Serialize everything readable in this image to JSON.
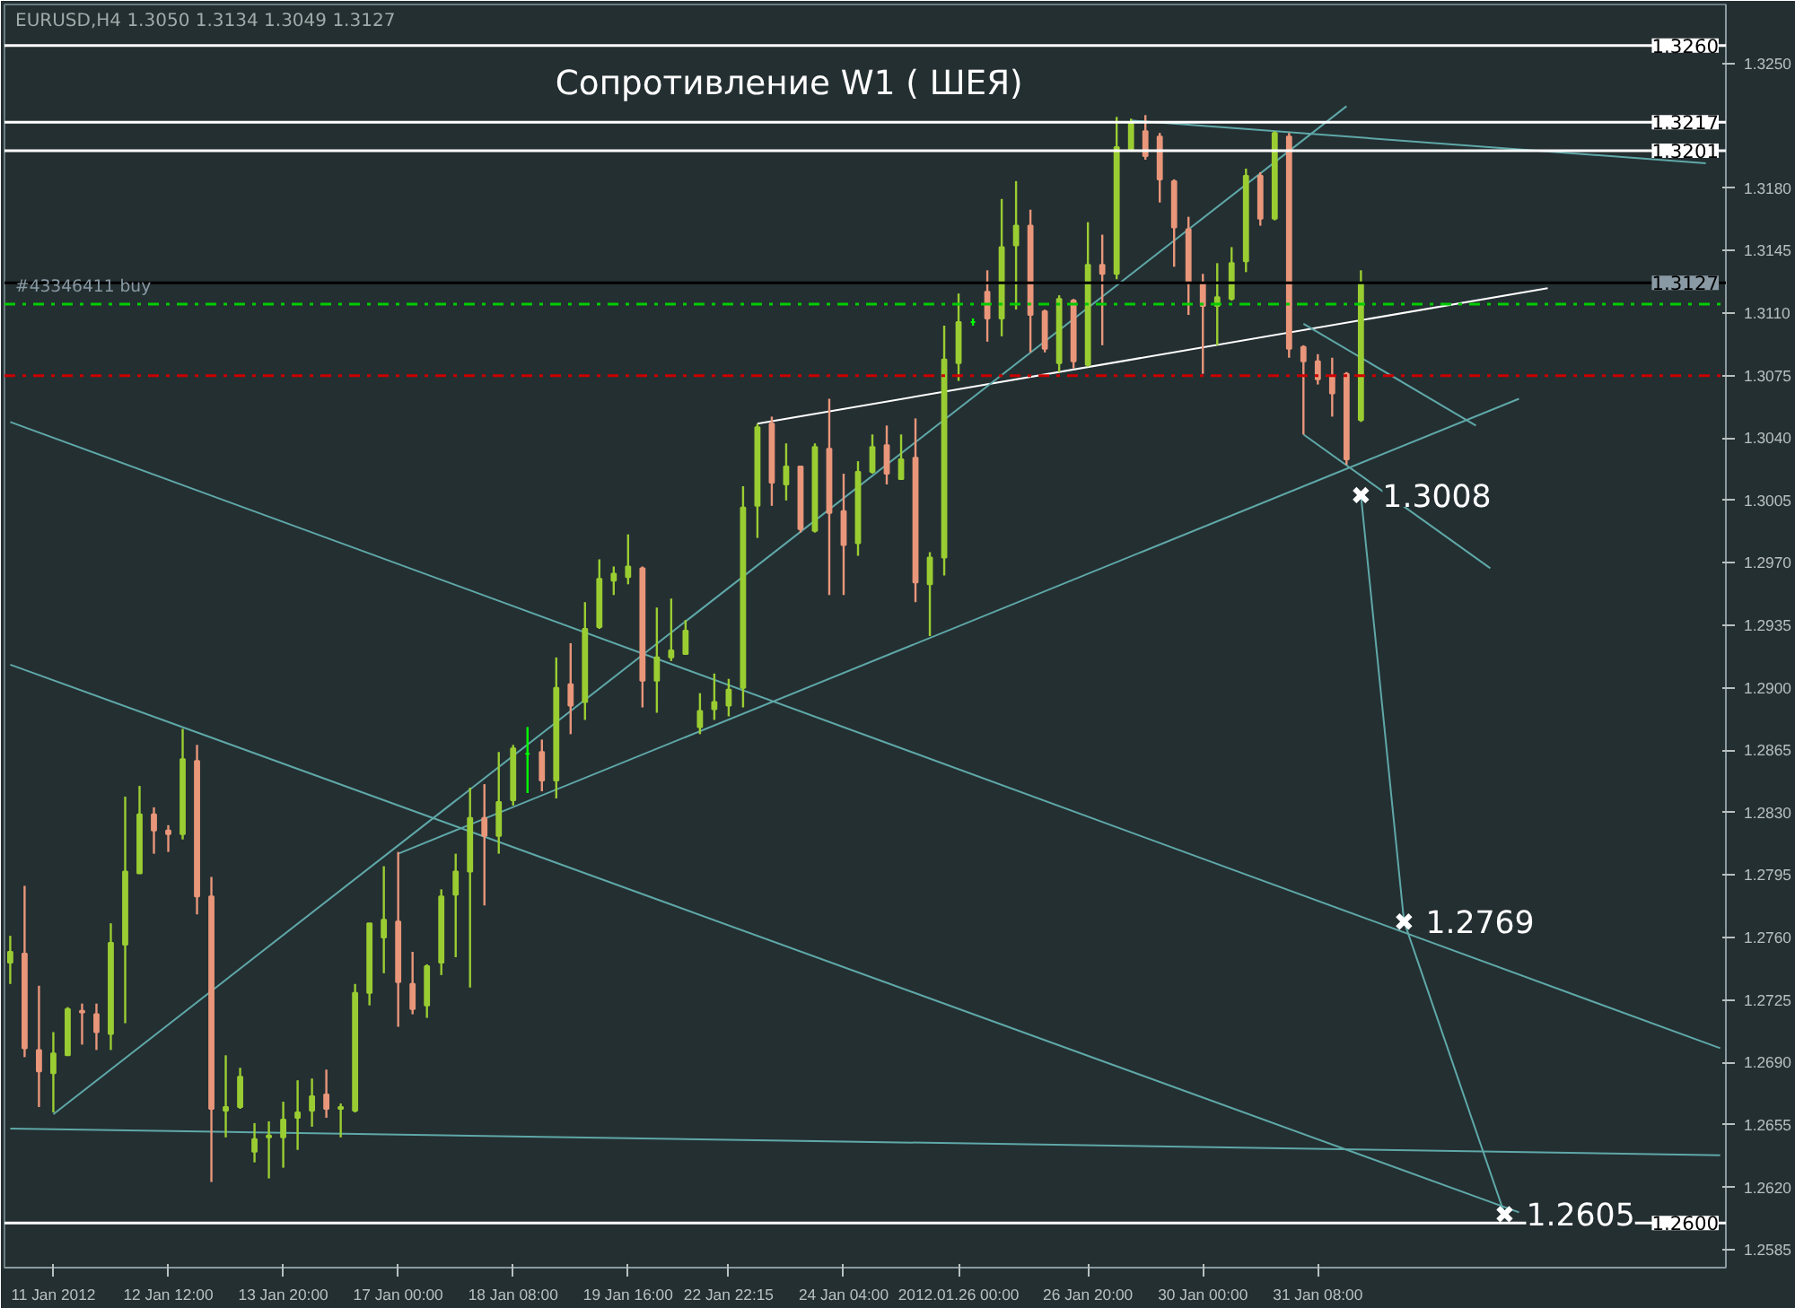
{
  "chart_data": {
    "type": "candlestick",
    "title": "EURUSD,H4  1.3050 1.3134 1.3049 1.3127",
    "categories": [
      null,
      null,
      null,
      "11 Jan 2012",
      null,
      null,
      null,
      null,
      null,
      null,
      null,
      "12 Jan 12:00",
      null,
      null,
      null,
      null,
      null,
      null,
      null,
      "13 Jan 20:00",
      null,
      null,
      null,
      null,
      null,
      null,
      null,
      "17 Jan 00:00",
      null,
      null,
      null,
      null,
      null,
      null,
      null,
      "18 Jan 08:00",
      null,
      null,
      null,
      null,
      null,
      null,
      null,
      "19 Jan 16:00",
      null,
      null,
      null,
      null,
      null,
      null,
      "22 Jan 22:15",
      null,
      null,
      null,
      null,
      null,
      null,
      null,
      "24 Jan 04:00",
      null,
      null,
      null,
      null,
      null,
      null,
      null,
      "2012.01.26 00:00",
      null,
      null,
      null,
      null,
      null,
      null,
      null,
      null,
      "26 Jan 20:00",
      null,
      null,
      null,
      null,
      null,
      null,
      null,
      "30 Jan 00:00",
      null,
      null,
      null,
      null,
      null,
      null,
      null,
      "31 Jan 08:00",
      null,
      null,
      null,
      null,
      null,
      null,
      null,
      null,
      null,
      null,
      null,
      null,
      null,
      null,
      null,
      null,
      null,
      null,
      null,
      null,
      null,
      null,
      null,
      null,
      null,
      null,
      null,
      null
    ],
    "ohlc": [
      [
        1.2746,
        1.2761,
        1.2734,
        1.2752
      ],
      [
        1.2751,
        1.2789,
        1.2693,
        1.2698
      ],
      [
        1.2697,
        1.2733,
        1.2665,
        1.2685
      ],
      [
        1.2684,
        1.2707,
        1.2662,
        1.2695
      ],
      [
        1.2694,
        1.2721,
        1.2694,
        1.272
      ],
      [
        1.2719,
        1.2723,
        1.27,
        1.2718
      ],
      [
        1.2717,
        1.2723,
        1.2697,
        1.2707
      ],
      [
        1.2706,
        1.2768,
        1.2697,
        1.2757
      ],
      [
        1.2756,
        1.2839,
        1.2712,
        1.2797
      ],
      [
        1.2796,
        1.2845,
        1.2796,
        1.2829
      ],
      [
        1.2829,
        1.2833,
        1.2807,
        1.282
      ],
      [
        1.282,
        1.2823,
        1.2808,
        1.2818
      ],
      [
        1.2818,
        1.2877,
        1.2815,
        1.286
      ],
      [
        1.2859,
        1.2868,
        1.2773,
        1.2783
      ],
      [
        1.2783,
        1.2794,
        1.2623,
        1.2664
      ],
      [
        1.2663,
        1.2694,
        1.2648,
        1.2665
      ],
      [
        1.2665,
        1.2687,
        1.2664,
        1.2682
      ],
      [
        1.264,
        1.2656,
        1.2634,
        1.2647
      ],
      [
        1.2648,
        1.2657,
        1.2625,
        1.2649
      ],
      [
        1.2648,
        1.2668,
        1.2631,
        1.2658
      ],
      [
        1.2659,
        1.268,
        1.2641,
        1.2662
      ],
      [
        1.2663,
        1.2681,
        1.2654,
        1.2671
      ],
      [
        1.2672,
        1.2686,
        1.2659,
        1.2664
      ],
      [
        1.2664,
        1.2667,
        1.2648,
        1.2665
      ],
      [
        1.2663,
        1.2734,
        1.2662,
        1.2729
      ],
      [
        1.2729,
        1.2768,
        1.2722,
        1.2768
      ],
      [
        1.276,
        1.28,
        1.274,
        1.277
      ],
      [
        1.2769,
        1.2808,
        1.271,
        1.2735
      ],
      [
        1.2734,
        1.2752,
        1.2717,
        1.272
      ],
      [
        1.2722,
        1.2745,
        1.2715,
        1.2744
      ],
      [
        1.2746,
        1.2787,
        1.2739,
        1.2783
      ],
      [
        1.2784,
        1.2807,
        1.2749,
        1.2797
      ],
      [
        1.2797,
        1.2844,
        1.2732,
        1.2827
      ],
      [
        1.2827,
        1.2846,
        1.2778,
        1.2817
      ],
      [
        1.2817,
        1.2864,
        1.2807,
        1.2836
      ],
      [
        1.2837,
        1.2868,
        1.2834,
        1.2866
      ],
      [
        1.2863,
        1.2878,
        1.2841,
        1.2863
      ],
      [
        1.2864,
        1.2871,
        1.2842,
        1.2848
      ],
      [
        1.2848,
        1.2917,
        1.2838,
        1.29
      ],
      [
        1.2902,
        1.2925,
        1.2874,
        1.289
      ],
      [
        1.2892,
        1.2948,
        1.2882,
        1.2933
      ],
      [
        1.2934,
        1.2972,
        1.2933,
        1.2961
      ],
      [
        1.296,
        1.2968,
        1.2952,
        1.2964
      ],
      [
        1.2962,
        1.2986,
        1.2958,
        1.2968
      ],
      [
        1.2967,
        1.2968,
        1.2889,
        1.2904
      ],
      [
        1.2904,
        1.2945,
        1.2886,
        1.2917
      ],
      [
        1.2917,
        1.295,
        1.2915,
        1.2921
      ],
      [
        1.2919,
        1.2938,
        1.2919,
        1.2932
      ],
      [
        1.2878,
        1.2897,
        1.2874,
        1.2887
      ],
      [
        1.2888,
        1.2908,
        1.2882,
        1.2892
      ],
      [
        1.289,
        1.2905,
        1.2884,
        1.2899
      ],
      [
        1.29,
        1.3013,
        1.2889,
        1.3001
      ],
      [
        1.3002,
        1.3048,
        1.2984,
        1.3046
      ],
      [
        1.3048,
        1.3052,
        1.3002,
        1.3015
      ],
      [
        1.3014,
        1.3037,
        1.3005,
        1.3024
      ],
      [
        1.3024,
        1.3024,
        1.2987,
        1.2989
      ],
      [
        1.2988,
        1.3037,
        1.2987,
        1.3035
      ],
      [
        1.3034,
        1.3062,
        1.2952,
        1.2998
      ],
      [
        1.2999,
        1.302,
        1.2952,
        1.298
      ],
      [
        1.2981,
        1.3027,
        1.2974,
        1.3021
      ],
      [
        1.3021,
        1.3042,
        1.302,
        1.3035
      ],
      [
        1.3036,
        1.3047,
        1.3014,
        1.302
      ],
      [
        1.3017,
        1.3042,
        1.3017,
        1.3028
      ],
      [
        1.3029,
        1.3051,
        1.2948,
        1.2959
      ],
      [
        1.2958,
        1.2976,
        1.2929,
        1.2973
      ],
      [
        1.2973,
        1.3103,
        1.2963,
        1.3084
      ],
      [
        1.3082,
        1.3121,
        1.3072,
        1.3105
      ],
      [
        1.3105,
        1.3107,
        1.3103,
        1.3105
      ],
      [
        1.3122,
        1.3134,
        1.3094,
        1.3107
      ],
      [
        1.3107,
        1.3174,
        1.3097,
        1.3147
      ],
      [
        1.3148,
        1.3184,
        1.3112,
        1.3159
      ],
      [
        1.3159,
        1.3168,
        1.3088,
        1.3109
      ],
      [
        1.3111,
        1.3112,
        1.3088,
        1.309
      ],
      [
        1.3082,
        1.312,
        1.3077,
        1.3118
      ],
      [
        1.3117,
        1.3118,
        1.3079,
        1.3083
      ],
      [
        1.3081,
        1.3161,
        1.308,
        1.3137
      ],
      [
        1.3137,
        1.3154,
        1.3092,
        1.3132
      ],
      [
        1.3132,
        1.322,
        1.3129,
        1.3203
      ],
      [
        1.3201,
        1.3219,
        1.3201,
        1.3217
      ],
      [
        1.3212,
        1.3221,
        1.3196,
        1.3198
      ],
      [
        1.3209,
        1.3211,
        1.3172,
        1.3185
      ],
      [
        1.3184,
        1.3185,
        1.3136,
        1.3158
      ],
      [
        1.3157,
        1.3164,
        1.3109,
        1.3127
      ],
      [
        1.3127,
        1.3132,
        1.3076,
        1.3114
      ],
      [
        1.3114,
        1.3138,
        1.3092,
        1.3119
      ],
      [
        1.3118,
        1.3147,
        1.3117,
        1.3138
      ],
      [
        1.3139,
        1.3191,
        1.3133,
        1.3187
      ],
      [
        1.3187,
        1.3189,
        1.3159,
        1.3163
      ],
      [
        1.3163,
        1.3212,
        1.3162,
        1.3211
      ],
      [
        1.3209,
        1.3211,
        1.3085,
        1.309
      ],
      [
        1.3091,
        1.3092,
        1.3042,
        1.3083
      ],
      [
        1.3083,
        1.3087,
        1.307,
        1.3073
      ],
      [
        1.3075,
        1.3085,
        1.3052,
        1.3065
      ],
      [
        1.3076,
        1.3077,
        1.3025,
        1.3028
      ],
      [
        1.305,
        1.3134,
        1.3049,
        1.3127
      ],
      null,
      null,
      null,
      null,
      null,
      null,
      null,
      null,
      null,
      null,
      null,
      null,
      null,
      null,
      null,
      null,
      null,
      null,
      null,
      null,
      null,
      null,
      null,
      null,
      null
    ],
    "colors": [
      "#9acd32",
      "#e9967a",
      "#e9967a",
      "#9acd32",
      "#9acd32",
      "#e9967a",
      "#e9967a",
      "#9acd32",
      "#9acd32",
      "#9acd32",
      "#e9967a",
      "#e9967a",
      "#9acd32",
      "#e9967a",
      "#e9967a",
      "#9acd32",
      "#9acd32",
      "#9acd32",
      "#9acd32",
      "#9acd32",
      "#9acd32",
      "#9acd32",
      "#e9967a",
      "#9acd32",
      "#9acd32",
      "#9acd32",
      "#9acd32",
      "#e9967a",
      "#e9967a",
      "#9acd32",
      "#9acd32",
      "#9acd32",
      "#9acd32",
      "#e9967a",
      "#9acd32",
      "#9acd32",
      "#00ff00",
      "#e9967a",
      "#9acd32",
      "#e9967a",
      "#9acd32",
      "#9acd32",
      "#9acd32",
      "#9acd32",
      "#e9967a",
      "#9acd32",
      "#9acd32",
      "#9acd32",
      "#9acd32",
      "#9acd32",
      "#9acd32",
      "#9acd32",
      "#9acd32",
      "#e9967a",
      "#9acd32",
      "#e9967a",
      "#9acd32",
      "#e9967a",
      "#e9967a",
      "#9acd32",
      "#9acd32",
      "#e9967a",
      "#9acd32",
      "#e9967a",
      "#9acd32",
      "#9acd32",
      "#9acd32",
      "#00ff00",
      "#e9967a",
      "#9acd32",
      "#9acd32",
      "#e9967a",
      "#e9967a",
      "#9acd32",
      "#e9967a",
      "#9acd32",
      "#e9967a",
      "#9acd32",
      "#9acd32",
      "#e9967a",
      "#e9967a",
      "#e9967a",
      "#e9967a",
      "#e9967a",
      "#9acd32",
      "#9acd32",
      "#9acd32",
      "#e9967a",
      "#9acd32",
      "#e9967a",
      "#e9967a",
      "#e9967a",
      "#e9967a",
      "#e9967a",
      "#9acd32",
      null,
      null,
      null,
      null,
      null,
      null,
      null,
      null,
      null,
      null,
      null,
      null,
      null,
      null,
      null,
      null,
      null,
      null,
      null,
      null,
      null,
      null,
      null,
      null,
      null
    ],
    "series": [
      {
        "type": "line",
        "color": "#ffffff",
        "values": [
          null,
          null,
          null,
          null,
          null,
          null,
          null,
          null,
          null,
          null,
          null,
          null,
          null,
          null,
          null,
          null,
          null,
          null,
          null,
          null,
          null,
          null,
          null,
          null,
          null,
          null,
          null,
          null,
          null,
          null,
          null,
          null,
          null,
          null,
          null,
          null,
          null,
          null,
          null,
          null,
          null,
          null,
          null,
          null,
          null,
          null,
          null,
          null,
          null,
          null,
          null,
          null,
          1.3048,
          null,
          null,
          null,
          null,
          null,
          null,
          null,
          null,
          null,
          null,
          null,
          null,
          null,
          null,
          null,
          null,
          null,
          null,
          null,
          null,
          null,
          null,
          null,
          null,
          null,
          null,
          null,
          null,
          null,
          null,
          null,
          null,
          null,
          null,
          null,
          null,
          null,
          null,
          null,
          null,
          null,
          null,
          null,
          null,
          null,
          null,
          null,
          null,
          null,
          null,
          null,
          null,
          null,
          null,
          1.3124,
          null,
          null,
          null,
          null,
          null,
          null,
          null,
          null,
          null,
          null,
          null,
          null
        ]
      },
      {
        "type": "line",
        "color": "#5fa8a8",
        "values": [
          1.3049,
          null,
          null,
          null,
          null,
          null,
          null,
          null,
          null,
          null,
          null,
          null,
          null,
          null,
          null,
          null,
          null,
          null,
          null,
          null,
          null,
          null,
          null,
          null,
          null,
          null,
          null,
          null,
          null,
          null,
          null,
          null,
          null,
          null,
          null,
          null,
          null,
          null,
          null,
          null,
          null,
          null,
          null,
          null,
          null,
          null,
          null,
          null,
          null,
          null,
          null,
          null,
          null,
          null,
          null,
          null,
          null,
          null,
          null,
          null,
          null,
          null,
          null,
          null,
          null,
          null,
          null,
          null,
          null,
          null,
          null,
          null,
          null,
          null,
          null,
          null,
          null,
          null,
          null,
          null,
          null,
          null,
          null,
          null,
          null,
          null,
          null,
          null,
          null,
          null,
          null,
          null,
          null,
          null,
          null,
          null,
          null,
          null,
          null,
          null,
          null,
          null,
          null,
          null,
          null,
          null,
          null,
          null,
          null,
          null,
          null,
          null,
          null,
          null,
          null,
          null,
          null,
          null,
          null,
          1.2698
        ]
      },
      {
        "type": "line",
        "color": "#5fa8a8",
        "values": [
          1.2913,
          null,
          null,
          null,
          null,
          null,
          null,
          null,
          null,
          null,
          null,
          null,
          null,
          null,
          null,
          null,
          null,
          null,
          null,
          null,
          null,
          null,
          null,
          null,
          null,
          null,
          null,
          null,
          null,
          null,
          null,
          null,
          null,
          null,
          null,
          null,
          null,
          null,
          null,
          null,
          null,
          null,
          null,
          null,
          null,
          null,
          null,
          null,
          null,
          null,
          null,
          null,
          null,
          null,
          null,
          null,
          null,
          null,
          null,
          null,
          null,
          null,
          null,
          null,
          null,
          null,
          null,
          null,
          null,
          null,
          null,
          null,
          null,
          null,
          null,
          null,
          null,
          null,
          null,
          null,
          null,
          null,
          null,
          null,
          null,
          null,
          null,
          null,
          null,
          null,
          null,
          null,
          null,
          null,
          null,
          null,
          null,
          null,
          null,
          null,
          null,
          null,
          null,
          null,
          null,
          1.2606,
          null,
          null,
          null,
          null,
          null,
          null,
          null,
          null,
          null,
          null,
          null,
          null,
          null,
          null
        ]
      },
      {
        "type": "line",
        "color": "#5fa8a8",
        "values": [
          null,
          null,
          null,
          1.2661,
          null,
          null,
          null,
          null,
          null,
          null,
          null,
          null,
          null,
          null,
          null,
          null,
          null,
          null,
          null,
          null,
          null,
          null,
          null,
          null,
          null,
          null,
          null,
          null,
          null,
          null,
          null,
          null,
          null,
          null,
          null,
          null,
          null,
          null,
          null,
          null,
          null,
          null,
          null,
          null,
          null,
          null,
          null,
          null,
          null,
          null,
          null,
          null,
          null,
          null,
          null,
          null,
          null,
          null,
          null,
          null,
          null,
          null,
          null,
          null,
          null,
          null,
          null,
          null,
          null,
          null,
          null,
          null,
          null,
          null,
          null,
          null,
          null,
          null,
          null,
          null,
          null,
          null,
          null,
          null,
          null,
          null,
          null,
          null,
          null,
          null,
          null,
          null,
          null,
          1.3226,
          null,
          null,
          null,
          null,
          null,
          null,
          null,
          null,
          null,
          null,
          null,
          null,
          null,
          null,
          null,
          null,
          null,
          null,
          null,
          null,
          null,
          null,
          null,
          null,
          null,
          null
        ]
      },
      {
        "type": "line",
        "color": "#5fa8a8",
        "values": [
          null,
          null,
          null,
          null,
          null,
          null,
          null,
          null,
          null,
          null,
          null,
          null,
          null,
          null,
          null,
          null,
          null,
          null,
          null,
          null,
          null,
          null,
          null,
          null,
          null,
          null,
          null,
          1.2807,
          null,
          null,
          null,
          null,
          null,
          null,
          null,
          null,
          null,
          null,
          null,
          null,
          null,
          null,
          null,
          null,
          null,
          null,
          null,
          null,
          null,
          null,
          null,
          null,
          null,
          null,
          null,
          null,
          null,
          null,
          null,
          null,
          null,
          null,
          null,
          null,
          null,
          null,
          null,
          null,
          null,
          null,
          null,
          null,
          null,
          null,
          null,
          null,
          null,
          null,
          null,
          null,
          null,
          null,
          null,
          null,
          null,
          null,
          null,
          null,
          null,
          null,
          null,
          null,
          null,
          null,
          null,
          null,
          null,
          null,
          null,
          null,
          null,
          null,
          null,
          null,
          null,
          1.3062,
          null,
          null,
          null,
          null,
          null,
          null,
          null,
          null,
          null,
          null,
          null,
          null,
          null,
          null
        ]
      },
      {
        "type": "line",
        "color": "#5fa8a8",
        "values": [
          1.2653,
          null,
          null,
          null,
          null,
          null,
          null,
          null,
          null,
          null,
          null,
          null,
          null,
          null,
          null,
          null,
          null,
          null,
          null,
          null,
          null,
          null,
          null,
          null,
          null,
          null,
          null,
          null,
          null,
          null,
          null,
          null,
          null,
          null,
          null,
          null,
          null,
          null,
          null,
          null,
          null,
          null,
          null,
          null,
          null,
          null,
          null,
          null,
          null,
          null,
          null,
          null,
          null,
          null,
          null,
          null,
          null,
          null,
          null,
          null,
          null,
          null,
          null,
          null,
          null,
          null,
          null,
          null,
          null,
          null,
          null,
          null,
          null,
          null,
          null,
          null,
          null,
          null,
          null,
          null,
          null,
          null,
          null,
          null,
          null,
          null,
          null,
          null,
          null,
          null,
          null,
          null,
          null,
          null,
          null,
          null,
          null,
          null,
          null,
          null,
          null,
          null,
          null,
          null,
          null,
          null,
          null,
          null,
          null,
          null,
          null,
          null,
          null,
          null,
          null,
          null,
          null,
          null,
          null,
          1.2638
        ]
      },
      {
        "type": "line",
        "color": "#5fa8a8",
        "marker": "cross",
        "values": [
          null,
          null,
          null,
          null,
          null,
          null,
          null,
          null,
          null,
          null,
          null,
          null,
          null,
          null,
          null,
          null,
          null,
          null,
          null,
          null,
          null,
          null,
          null,
          null,
          null,
          null,
          null,
          null,
          null,
          null,
          null,
          null,
          null,
          null,
          null,
          null,
          null,
          null,
          null,
          null,
          null,
          null,
          null,
          null,
          null,
          null,
          null,
          null,
          null,
          null,
          null,
          null,
          null,
          null,
          null,
          null,
          null,
          null,
          null,
          null,
          null,
          null,
          null,
          null,
          null,
          null,
          null,
          null,
          null,
          null,
          null,
          null,
          null,
          null,
          null,
          null,
          null,
          null,
          null,
          null,
          null,
          null,
          null,
          null,
          null,
          null,
          null,
          null,
          null,
          null,
          null,
          null,
          null,
          null,
          1.3008,
          null,
          null,
          1.2769,
          null,
          null,
          null,
          null,
          null,
          null,
          1.2605,
          null,
          null,
          null,
          null,
          null,
          null,
          null,
          null,
          null,
          null,
          null,
          null,
          null,
          null,
          null
        ],
        "value_labels": [
          null,
          null,
          null,
          null,
          null,
          null,
          null,
          null,
          null,
          null,
          null,
          null,
          null,
          null,
          null,
          null,
          null,
          null,
          null,
          null,
          null,
          null,
          null,
          null,
          null,
          null,
          null,
          null,
          null,
          null,
          null,
          null,
          null,
          null,
          null,
          null,
          null,
          null,
          null,
          null,
          null,
          null,
          null,
          null,
          null,
          null,
          null,
          null,
          null,
          null,
          null,
          null,
          null,
          null,
          null,
          null,
          null,
          null,
          null,
          null,
          null,
          null,
          null,
          null,
          null,
          null,
          null,
          null,
          null,
          null,
          null,
          null,
          null,
          null,
          null,
          null,
          null,
          null,
          null,
          null,
          null,
          null,
          null,
          null,
          null,
          null,
          null,
          null,
          null,
          null,
          null,
          null,
          null,
          null,
          "1.3008",
          null,
          null,
          "1.2769",
          null,
          null,
          null,
          null,
          null,
          null,
          "1.2605",
          null,
          null,
          null,
          null,
          null,
          null,
          null,
          null,
          null,
          null,
          null,
          null,
          null,
          null,
          null
        ]
      },
      {
        "type": "line",
        "color": "#5fa8a8",
        "values": [
          null,
          null,
          null,
          null,
          null,
          null,
          null,
          null,
          null,
          null,
          null,
          null,
          null,
          null,
          null,
          null,
          null,
          null,
          null,
          null,
          null,
          null,
          null,
          null,
          null,
          null,
          null,
          null,
          null,
          null,
          null,
          null,
          null,
          null,
          null,
          null,
          null,
          null,
          null,
          null,
          null,
          null,
          null,
          null,
          null,
          null,
          null,
          null,
          null,
          null,
          null,
          null,
          null,
          null,
          null,
          null,
          null,
          null,
          null,
          null,
          null,
          null,
          null,
          null,
          null,
          null,
          null,
          null,
          null,
          null,
          null,
          null,
          null,
          null,
          null,
          null,
          null,
          null,
          1.3218,
          null,
          null,
          null,
          null,
          null,
          null,
          null,
          null,
          null,
          null,
          null,
          null,
          null,
          null,
          null,
          null,
          null,
          null,
          null,
          null,
          null,
          null,
          null,
          null,
          null,
          null,
          null,
          null,
          null,
          null,
          null,
          null,
          null,
          null,
          null,
          null,
          null,
          null,
          null,
          1.3194,
          null
        ]
      },
      {
        "type": "line",
        "color": "#5fa8a8",
        "values": [
          null,
          null,
          null,
          null,
          null,
          null,
          null,
          null,
          null,
          null,
          null,
          null,
          null,
          null,
          null,
          null,
          null,
          null,
          null,
          null,
          null,
          null,
          null,
          null,
          null,
          null,
          null,
          null,
          null,
          null,
          null,
          null,
          null,
          null,
          null,
          null,
          null,
          null,
          null,
          null,
          null,
          null,
          null,
          null,
          null,
          null,
          null,
          null,
          null,
          null,
          null,
          null,
          null,
          null,
          null,
          null,
          null,
          null,
          null,
          null,
          null,
          null,
          null,
          null,
          null,
          null,
          null,
          null,
          null,
          null,
          null,
          null,
          null,
          null,
          null,
          null,
          null,
          null,
          null,
          null,
          null,
          null,
          null,
          null,
          null,
          null,
          null,
          null,
          null,
          null,
          1.3104,
          null,
          null,
          null,
          null,
          null,
          null,
          null,
          null,
          null,
          null,
          null,
          1.3047,
          null,
          null,
          null,
          null,
          null,
          null,
          null,
          null,
          null,
          null,
          null,
          null,
          null,
          null,
          null,
          null,
          null
        ]
      },
      {
        "type": "line",
        "color": "#5fa8a8",
        "values": [
          null,
          null,
          null,
          null,
          null,
          null,
          null,
          null,
          null,
          null,
          null,
          null,
          null,
          null,
          null,
          null,
          null,
          null,
          null,
          null,
          null,
          null,
          null,
          null,
          null,
          null,
          null,
          null,
          null,
          null,
          null,
          null,
          null,
          null,
          null,
          null,
          null,
          null,
          null,
          null,
          null,
          null,
          null,
          null,
          null,
          null,
          null,
          null,
          null,
          null,
          null,
          null,
          null,
          null,
          null,
          null,
          null,
          null,
          null,
          null,
          null,
          null,
          null,
          null,
          null,
          null,
          null,
          null,
          null,
          null,
          null,
          null,
          null,
          null,
          null,
          null,
          null,
          null,
          null,
          null,
          null,
          null,
          null,
          null,
          null,
          null,
          null,
          null,
          null,
          null,
          1.3042,
          null,
          null,
          null,
          null,
          null,
          null,
          null,
          null,
          null,
          null,
          null,
          null,
          1.2967,
          null,
          null,
          null,
          null,
          null,
          null,
          null,
          null,
          null,
          null,
          null,
          null,
          null,
          null,
          null,
          null
        ]
      }
    ],
    "ref_lines": [
      {
        "axis": "y",
        "value": 1.326,
        "label": "1.3260",
        "color": "#ffffff",
        "line_style": "solid"
      },
      {
        "axis": "y",
        "value": 1.3217,
        "label": "1.3217",
        "color": "#ffffff",
        "line_style": "solid"
      },
      {
        "axis": "y",
        "value": 1.3201,
        "label": "1.3201",
        "color": "#ffffff",
        "line_style": "solid"
      },
      {
        "axis": "y",
        "value": 1.3127,
        "label": "1.3127",
        "color": "#000000",
        "line_style": "solid"
      },
      {
        "axis": "y",
        "value": 1.3115,
        "label": "#43346411 buy",
        "color": "#00cc00",
        "line_style": "dashdot"
      },
      {
        "axis": "y",
        "value": 1.3075,
        "color": "#cc0000",
        "line_style": "dashdot"
      },
      {
        "axis": "y",
        "value": 1.26,
        "label": "1.2600",
        "color": "#ffffff",
        "line_style": "solid"
      }
    ],
    "annotations": [
      "Сопротивление  W1 ( ШЕЯ)"
    ],
    "ylim": [
      1.2575,
      1.3283
    ],
    "yticks": [
      {
        "value": 1.325,
        "label": "1.3250"
      },
      {
        "value": 1.318,
        "label": "1.3180"
      },
      {
        "value": 1.3145,
        "label": "1.3145"
      },
      {
        "value": 1.311,
        "label": "1.3110"
      },
      {
        "value": 1.3075,
        "label": "1.3075"
      },
      {
        "value": 1.304,
        "label": "1.3040"
      },
      {
        "value": 1.3005,
        "label": "1.3005"
      },
      {
        "value": 1.297,
        "label": "1.2970"
      },
      {
        "value": 1.2935,
        "label": "1.2935"
      },
      {
        "value": 1.29,
        "label": "1.2900"
      },
      {
        "value": 1.2865,
        "label": "1.2865"
      },
      {
        "value": 1.283,
        "label": "1.2830"
      },
      {
        "value": 1.2795,
        "label": "1.2795"
      },
      {
        "value": 1.276,
        "label": "1.2760"
      },
      {
        "value": 1.2725,
        "label": "1.2725"
      },
      {
        "value": 1.269,
        "label": "1.2690"
      },
      {
        "value": 1.2655,
        "label": "1.2655"
      },
      {
        "value": 1.262,
        "label": "1.2620"
      },
      {
        "value": 1.2585,
        "label": "1.2585"
      }
    ],
    "grid": false
  }
}
